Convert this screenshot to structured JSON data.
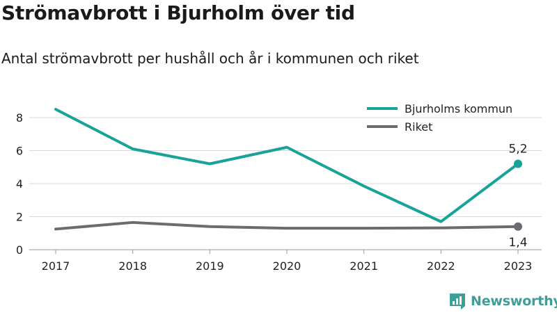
{
  "title": "Strömavbrott i Bjurholm över tid",
  "subtitle": "Antal strömavbrott per hushåll och år i kommunen och riket",
  "brand": "Newsworthy",
  "colors": {
    "kommun": "#17a398",
    "riket": "#6b6b70",
    "grid": "#d9d9d9",
    "brand": "#3f9e97"
  },
  "chart_data": {
    "type": "line",
    "x": [
      "2017",
      "2018",
      "2019",
      "2020",
      "2021",
      "2022",
      "2023"
    ],
    "series": [
      {
        "name": "Bjurholms kommun",
        "values": [
          8.5,
          6.1,
          5.2,
          6.2,
          3.85,
          1.7,
          5.2
        ]
      },
      {
        "name": "Riket",
        "values": [
          1.25,
          1.65,
          1.4,
          1.3,
          1.3,
          1.32,
          1.4
        ]
      }
    ],
    "yticks": [
      "0",
      "2",
      "4",
      "6",
      "8"
    ],
    "ylim": [
      0,
      9
    ],
    "grid": true,
    "legend": "top-right",
    "end_labels": [
      "5,2",
      "1,4"
    ]
  }
}
